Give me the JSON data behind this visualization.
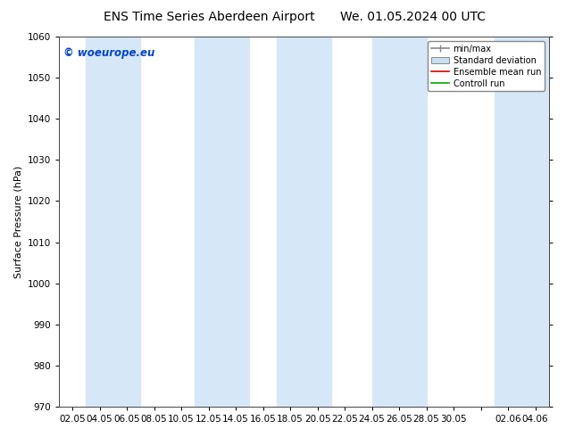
{
  "title_left": "ENS Time Series Aberdeen Airport",
  "title_right": "We. 01.05.2024 00 UTC",
  "ylabel": "Surface Pressure (hPa)",
  "ylim": [
    970,
    1060
  ],
  "yticks": [
    970,
    980,
    990,
    1000,
    1010,
    1020,
    1030,
    1040,
    1050,
    1060
  ],
  "xtick_labels": [
    "02.05",
    "04.05",
    "06.05",
    "08.05",
    "10.05",
    "12.05",
    "14.05",
    "16.05",
    "18.05",
    "20.05",
    "22.05",
    "24.05",
    "26.05",
    "28.05",
    "30.05",
    "",
    "02.06",
    "04.06"
  ],
  "background_color": "#ffffff",
  "plot_bg_color": "#ffffff",
  "band_color": "#d6e8f7",
  "watermark": "© woeurope.eu",
  "watermark_color": "#0044cc",
  "legend_entries": [
    "min/max",
    "Standard deviation",
    "Ensemble mean run",
    "Controll run"
  ],
  "title_fontsize": 10,
  "axis_label_fontsize": 8,
  "tick_fontsize": 7.5
}
